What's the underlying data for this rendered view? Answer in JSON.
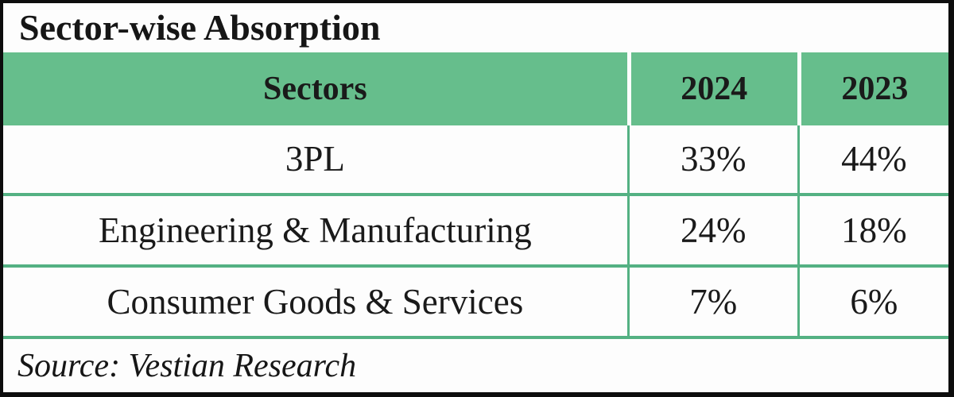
{
  "title": "Sector-wise Absorption",
  "table": {
    "headers": {
      "sectors": "Sectors",
      "y2024": "2024",
      "y2023": "2023"
    },
    "rows": [
      {
        "sector": "3PL",
        "v2024": "33%",
        "v2023": "44%"
      },
      {
        "sector": "Engineering & Manufacturing",
        "v2024": "24%",
        "v2023": "18%"
      },
      {
        "sector": "Consumer Goods & Services",
        "v2024": "7%",
        "v2023": "6%"
      }
    ]
  },
  "source": "Source: Vestian Research",
  "colors": {
    "header_green": "#66be8c",
    "grid_line_green": "#54b183",
    "text": "#1a1a1a",
    "frame_black": "#0d0d0d",
    "background": "#fdfdfd"
  },
  "chart_data": {
    "type": "table",
    "title": "Sector-wise Absorption",
    "columns": [
      "Sectors",
      "2024",
      "2023"
    ],
    "rows": [
      [
        "3PL",
        "33%",
        "44%"
      ],
      [
        "Engineering & Manufacturing",
        "24%",
        "18%"
      ],
      [
        "Consumer Goods & Services",
        "7%",
        "6%"
      ]
    ],
    "series": [
      {
        "name": "2024",
        "values": [
          33,
          24,
          7
        ]
      },
      {
        "name": "2023",
        "values": [
          44,
          18,
          6
        ]
      }
    ],
    "categories": [
      "3PL",
      "Engineering & Manufacturing",
      "Consumer Goods & Services"
    ],
    "unit": "percent",
    "source": "Source: Vestian Research"
  }
}
